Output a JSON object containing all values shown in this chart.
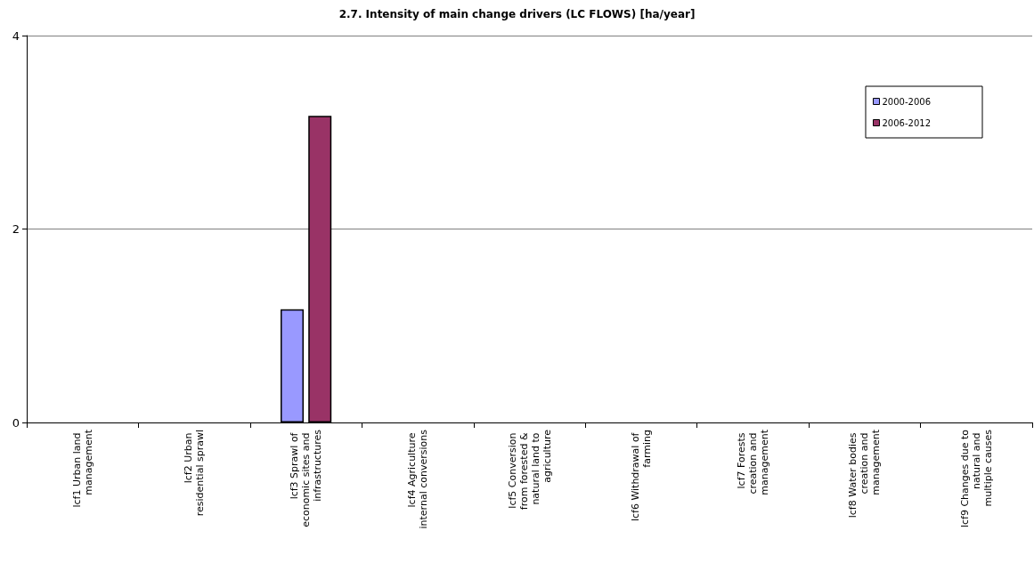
{
  "chart_data": {
    "type": "bar",
    "title": "2.7. Intensity of main change drivers (LC FLOWS) [ha/year]",
    "categories": [
      "lcf1 Urban land management",
      "lcf2 Urban residential sprawl",
      "lcf3 Sprawl of economic sites and infrastructures",
      "lcf4 Agriculture internal conversions",
      "lcf5 Conversion from forested & natural land to agriculture",
      "lcf6 Withdrawal of farming",
      "lcf7 Forests creation and management",
      "lcf8 Water bodies creation and management",
      "lcf9 Changes due to natural and multiple causes"
    ],
    "series": [
      {
        "name": "2000-2006",
        "color": "#9999ff",
        "values": [
          0,
          0,
          1.17,
          0,
          0,
          0,
          0,
          0,
          0
        ]
      },
      {
        "name": "2006-2012",
        "color": "#993366",
        "values": [
          0,
          0,
          3.17,
          0,
          0,
          0,
          0,
          0,
          0
        ]
      }
    ],
    "ylim": [
      0,
      4
    ],
    "yticks": [
      0,
      2,
      4
    ],
    "grid": "y",
    "legend": "top right"
  }
}
